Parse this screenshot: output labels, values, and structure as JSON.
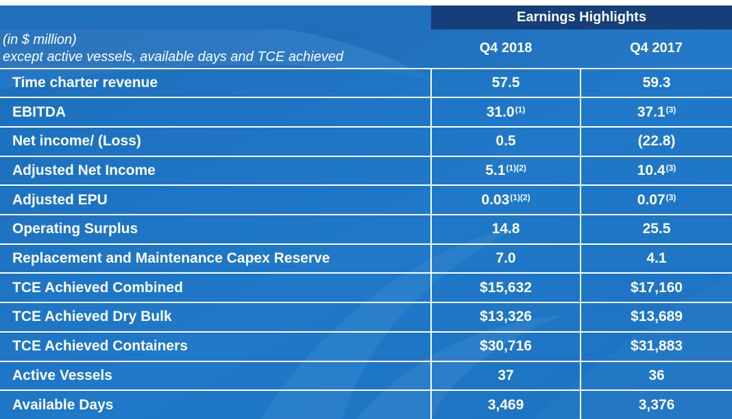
{
  "table": {
    "band_title": "Earnings Highlights",
    "note_line1": "(in $ million)",
    "note_line2": "except active vessels, available days and TCE achieved",
    "columns": [
      "Q4 2018",
      "Q4 2017"
    ],
    "rows": [
      {
        "label": "Time charter revenue",
        "q4_2018": "57.5",
        "q4_2018_fn": "",
        "q4_2017": "59.3",
        "q4_2017_fn": ""
      },
      {
        "label": "EBITDA",
        "q4_2018": "31.0",
        "q4_2018_fn": "(1)",
        "q4_2017": "37.1",
        "q4_2017_fn": "(3)"
      },
      {
        "label": "Net income/ (Loss)",
        "q4_2018": "0.5",
        "q4_2018_fn": "",
        "q4_2017": "(22.8)",
        "q4_2017_fn": ""
      },
      {
        "label": "Adjusted Net Income",
        "q4_2018": "5.1",
        "q4_2018_fn": "(1)(2)",
        "q4_2017": "10.4",
        "q4_2017_fn": "(3)"
      },
      {
        "label": "Adjusted EPU",
        "q4_2018": "0.03",
        "q4_2018_fn": "(1)(2)",
        "q4_2017": "0.07",
        "q4_2017_fn": "(3)"
      },
      {
        "label": "Operating Surplus",
        "q4_2018": "14.8",
        "q4_2018_fn": "",
        "q4_2017": "25.5",
        "q4_2017_fn": ""
      },
      {
        "label": "Replacement and Maintenance Capex Reserve",
        "q4_2018": "7.0",
        "q4_2018_fn": "",
        "q4_2017": "4.1",
        "q4_2017_fn": ""
      },
      {
        "label": "TCE Achieved Combined",
        "q4_2018": "$15,632",
        "q4_2018_fn": "",
        "q4_2017": "$17,160",
        "q4_2017_fn": ""
      },
      {
        "label": "TCE Achieved Dry Bulk",
        "q4_2018": "$13,326",
        "q4_2018_fn": "",
        "q4_2017": "$13,689",
        "q4_2017_fn": ""
      },
      {
        "label": "TCE Achieved Containers",
        "q4_2018": "$30,716",
        "q4_2018_fn": "",
        "q4_2017": "$31,883",
        "q4_2017_fn": ""
      },
      {
        "label": "Active Vessels",
        "q4_2018": "37",
        "q4_2018_fn": "",
        "q4_2017": "36",
        "q4_2017_fn": ""
      },
      {
        "label": "Available Days",
        "q4_2018": "3,469",
        "q4_2018_fn": "",
        "q4_2017": "3,376",
        "q4_2017_fn": ""
      }
    ]
  },
  "colors": {
    "background": "#1f6fbd",
    "band": "#163f7a",
    "grid": "#ffffff",
    "text": "#ffffff"
  }
}
